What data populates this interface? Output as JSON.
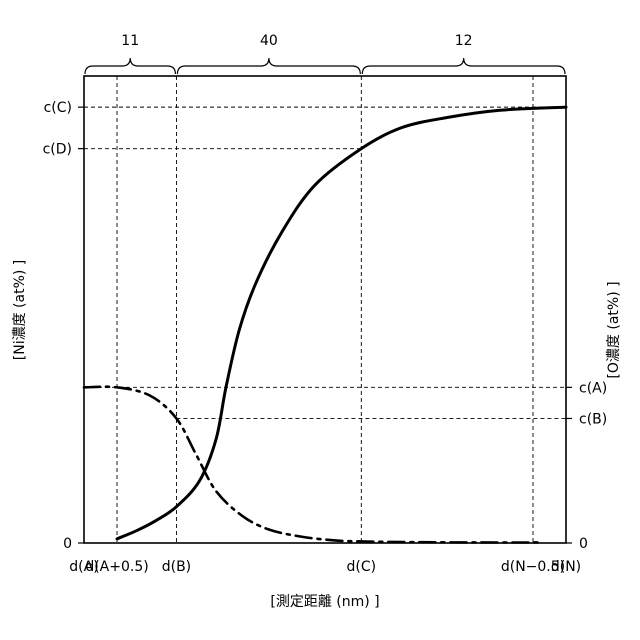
{
  "chart_data": {
    "type": "line",
    "xlabel": "[測定距離 (nm) ]",
    "ylabel_left": "[Ni濃度 (at%) ]",
    "ylabel_right": "[O濃度 (at%) ]",
    "x_ticks": [
      "d(A)",
      "d(A+0.5)",
      "d(B)",
      "d(C)",
      "d(N−0.5)",
      "d(N)"
    ],
    "x_tick_values": [
      0,
      0.5,
      1.4,
      4.2,
      6.8,
      7.3
    ],
    "xlim": [
      0,
      7.3
    ],
    "y_left_ticks": [
      "0",
      "c(D)",
      "c(C)"
    ],
    "y_left_tick_values": [
      0,
      3.8,
      4.2
    ],
    "y_right_ticks": [
      "0",
      "c(B)",
      "c(A)"
    ],
    "y_right_tick_values": [
      0,
      1.2,
      1.5
    ],
    "ylim": [
      0,
      4.5
    ],
    "regions": [
      {
        "label": "11",
        "x_start": 0,
        "x_end": 1.4
      },
      {
        "label": "40",
        "x_start": 1.4,
        "x_end": 4.2
      },
      {
        "label": "12",
        "x_start": 4.2,
        "x_end": 7.3
      }
    ],
    "series": [
      {
        "style": "solid",
        "axis": "left",
        "x": [
          0.5,
          0.8,
          1.1,
          1.4,
          1.75,
          2.0,
          2.15,
          2.35,
          2.6,
          3.0,
          3.5,
          4.2,
          4.8,
          5.5,
          6.3,
          7.3
        ],
        "y": [
          0.04,
          0.12,
          0.22,
          0.35,
          0.6,
          1.0,
          1.5,
          2.05,
          2.5,
          3.0,
          3.45,
          3.8,
          4.0,
          4.1,
          4.17,
          4.2
        ]
      },
      {
        "style": "dash-dot",
        "axis": "right",
        "x": [
          0,
          0.5,
          1.0,
          1.4,
          1.7,
          2.0,
          2.4,
          2.8,
          3.3,
          3.8,
          4.2,
          5.0,
          6.0,
          6.9
        ],
        "y": [
          1.5,
          1.5,
          1.42,
          1.2,
          0.85,
          0.5,
          0.26,
          0.13,
          0.06,
          0.025,
          0.015,
          0.008,
          0.005,
          0.005
        ]
      }
    ]
  }
}
